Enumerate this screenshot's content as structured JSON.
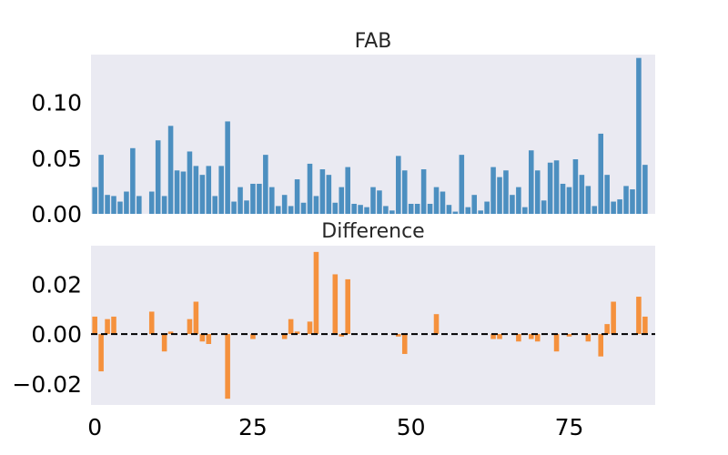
{
  "colors": {
    "plot_background": "#eaeaf2",
    "top_bars": "#4c8fc0",
    "bottom_bars": "#f5913d",
    "zero_line": "#000000"
  },
  "chart_data": [
    {
      "type": "bar",
      "title": "FAB",
      "xlim": [
        -0.6,
        88.6
      ],
      "ylim": [
        0,
        0.143
      ],
      "yticks": [
        0.0,
        0.05,
        0.1
      ],
      "ytick_labels": [
        "0.00",
        "0.05",
        "0.10"
      ],
      "x_ticks_visible": false,
      "grid": false,
      "color": "#4c8fc0",
      "x": [
        0,
        1,
        2,
        3,
        4,
        5,
        6,
        7,
        8,
        9,
        10,
        11,
        12,
        13,
        14,
        15,
        16,
        17,
        18,
        19,
        20,
        21,
        22,
        23,
        24,
        25,
        26,
        27,
        28,
        29,
        30,
        31,
        32,
        33,
        34,
        35,
        36,
        37,
        38,
        39,
        40,
        41,
        42,
        43,
        44,
        45,
        46,
        47,
        48,
        49,
        50,
        51,
        52,
        53,
        54,
        55,
        56,
        57,
        58,
        59,
        60,
        61,
        62,
        63,
        64,
        65,
        66,
        67,
        68,
        69,
        70,
        71,
        72,
        73,
        74,
        75,
        76,
        77,
        78,
        79,
        80,
        81,
        82,
        83,
        84,
        85,
        86,
        87,
        88
      ],
      "values": [
        0.024,
        0.053,
        0.017,
        0.016,
        0.011,
        0.02,
        0.059,
        0.016,
        0.0,
        0.02,
        0.066,
        0.016,
        0.079,
        0.039,
        0.038,
        0.056,
        0.043,
        0.035,
        0.043,
        0.016,
        0.043,
        0.083,
        0.011,
        0.024,
        0.012,
        0.027,
        0.027,
        0.053,
        0.024,
        0.007,
        0.017,
        0.007,
        0.031,
        0.01,
        0.045,
        0.016,
        0.04,
        0.035,
        0.01,
        0.024,
        0.042,
        0.009,
        0.008,
        0.006,
        0.024,
        0.021,
        0.007,
        0.003,
        0.052,
        0.039,
        0.009,
        0.009,
        0.04,
        0.009,
        0.024,
        0.02,
        0.008,
        0.002,
        0.053,
        0.006,
        0.017,
        0.003,
        0.011,
        0.042,
        0.033,
        0.039,
        0.017,
        0.024,
        0.006,
        0.057,
        0.039,
        0.012,
        0.046,
        0.048,
        0.027,
        0.024,
        0.049,
        0.035,
        0.025,
        0.007,
        0.072,
        0.035,
        0.011,
        0.013,
        0.025,
        0.022,
        0.14,
        0.044,
        0.0
      ]
    },
    {
      "type": "bar",
      "title": "Difference",
      "xlim": [
        -0.6,
        88.6
      ],
      "ylim": [
        -0.0285,
        0.0355
      ],
      "yticks": [
        -0.02,
        0.0,
        0.02
      ],
      "ytick_labels": [
        "−0.02",
        "0.00",
        "0.02"
      ],
      "xticks": [
        0,
        25,
        50,
        75
      ],
      "xtick_labels": [
        "0",
        "25",
        "50",
        "75"
      ],
      "grid": false,
      "reference_line": {
        "y": 0,
        "style": "dashed"
      },
      "color": "#f5913d",
      "x": [
        0,
        1,
        2,
        3,
        4,
        5,
        6,
        7,
        8,
        9,
        10,
        11,
        12,
        13,
        14,
        15,
        16,
        17,
        18,
        19,
        20,
        21,
        22,
        23,
        24,
        25,
        26,
        27,
        28,
        29,
        30,
        31,
        32,
        33,
        34,
        35,
        36,
        37,
        38,
        39,
        40,
        41,
        42,
        43,
        44,
        45,
        46,
        47,
        48,
        49,
        50,
        51,
        52,
        53,
        54,
        55,
        56,
        57,
        58,
        59,
        60,
        61,
        62,
        63,
        64,
        65,
        66,
        67,
        68,
        69,
        70,
        71,
        72,
        73,
        74,
        75,
        76,
        77,
        78,
        79,
        80,
        81,
        82,
        83,
        84,
        85,
        86,
        87,
        88
      ],
      "values": [
        0.007,
        -0.015,
        0.006,
        0.007,
        0.0,
        0.0,
        0.0,
        0.0,
        0.0,
        0.009,
        0.0,
        -0.007,
        0.001,
        0.0,
        0.0,
        0.006,
        0.013,
        -0.003,
        -0.004,
        0.0,
        0.0,
        -0.026,
        0.0,
        0.0,
        0.0,
        -0.002,
        0.0,
        0.0,
        0.0,
        0.0,
        -0.002,
        0.006,
        0.001,
        0.0,
        0.005,
        0.033,
        0.0,
        0.0,
        0.024,
        -0.001,
        0.022,
        0.0,
        0.0,
        0.0,
        0.0,
        0.0,
        0.0,
        0.0,
        -0.001,
        -0.008,
        0.0,
        0.0,
        0.0,
        0.0,
        0.008,
        0.0,
        0.0,
        0.0,
        0.0,
        0.0,
        0.0,
        0.0,
        0.0,
        -0.002,
        -0.002,
        0.0,
        0.0,
        -0.003,
        0.0,
        -0.002,
        -0.003,
        0.0,
        0.0,
        -0.007,
        0.0,
        -0.001,
        0.0,
        0.0,
        -0.003,
        0.0,
        -0.009,
        0.004,
        0.013,
        0.0,
        0.0,
        0.0,
        0.015,
        0.007,
        0.0
      ]
    }
  ]
}
